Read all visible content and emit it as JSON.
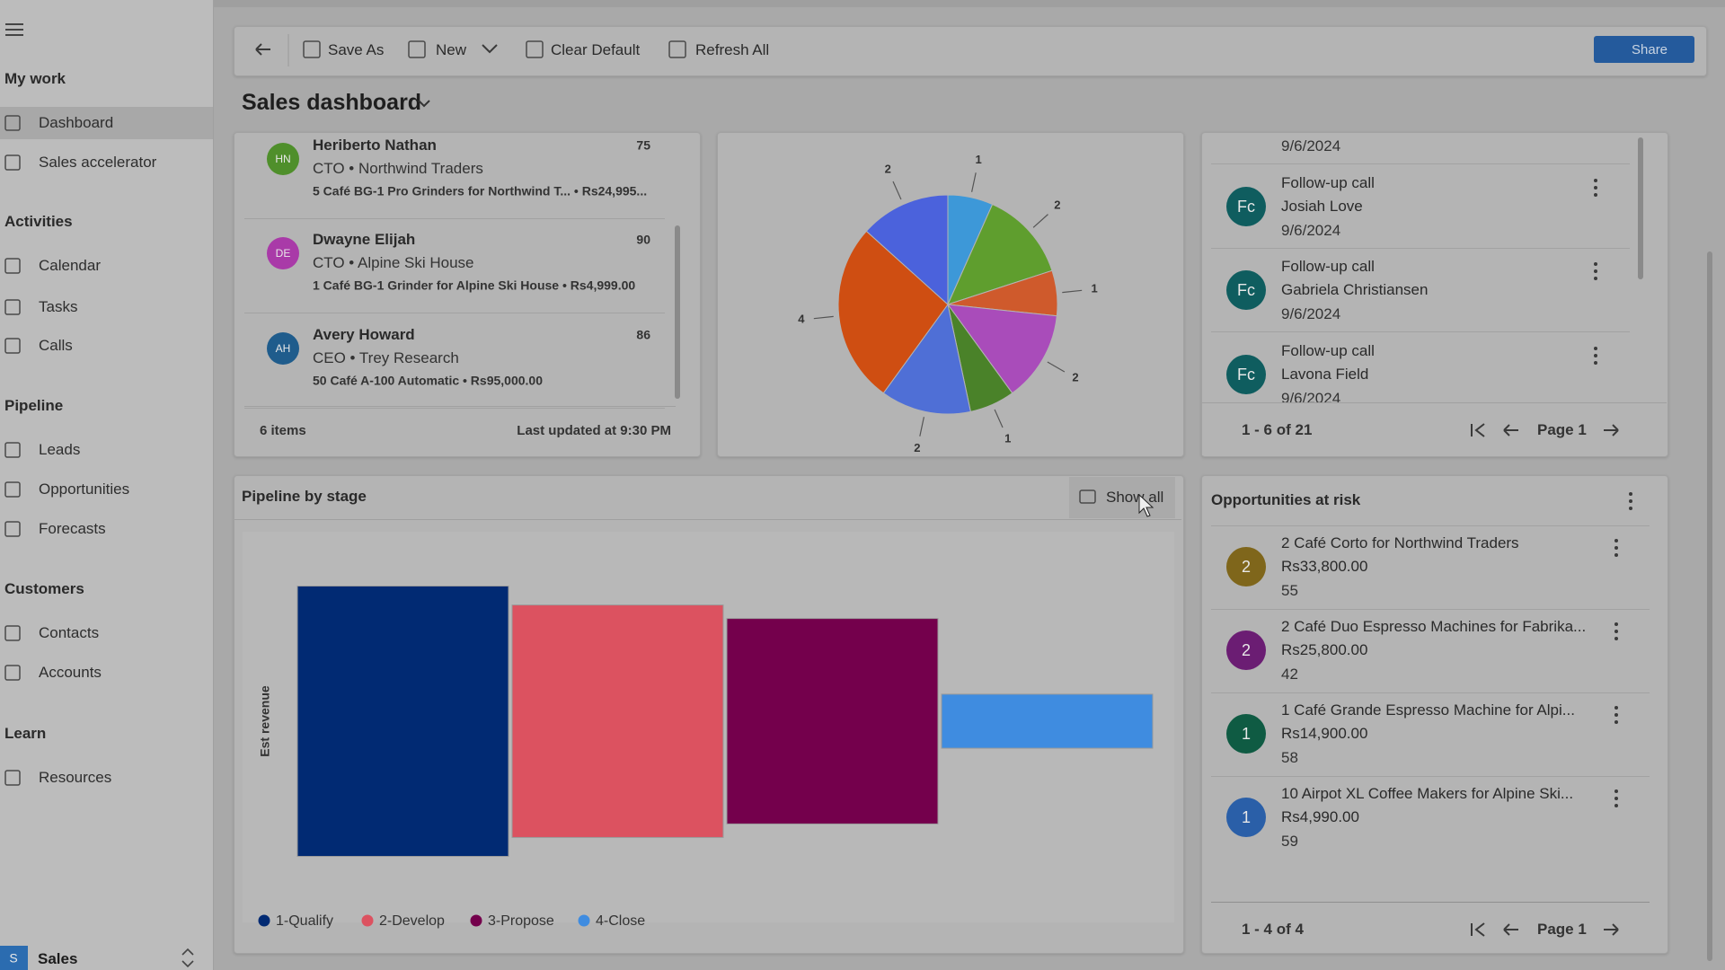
{
  "sidebar": {
    "sections": [
      {
        "title": "My work",
        "items": [
          "Dashboard",
          "Sales accelerator"
        ]
      },
      {
        "title": "Activities",
        "items": [
          "Calendar",
          "Tasks",
          "Calls"
        ]
      },
      {
        "title": "Pipeline",
        "items": [
          "Leads",
          "Opportunities",
          "Forecasts"
        ]
      },
      {
        "title": "Customers",
        "items": [
          "Contacts",
          "Accounts"
        ]
      },
      {
        "title": "Learn",
        "items": [
          "Resources"
        ]
      }
    ],
    "app_badge": "S",
    "app": "Sales"
  },
  "toolbar": {
    "buttons": [
      "Save As",
      "New",
      "Clear Default",
      "Refresh All"
    ],
    "share": "Share"
  },
  "header": {
    "title": "Sales dashboard"
  },
  "leads": {
    "items": [
      {
        "initials": "HN",
        "name": "Heriberto Nathan",
        "role": "CTO • Northwind Traders",
        "detail": "5 Café BG-1 Pro Grinders for Northwind T... • Rs24,995...",
        "score": 75
      },
      {
        "initials": "DE",
        "name": "Dwayne Elijah",
        "role": "CTO • Alpine Ski House",
        "detail": "1 Café BG-1 Grinder for Alpine Ski House • Rs4,999.00",
        "score": 90
      },
      {
        "initials": "AH",
        "name": "Avery Howard",
        "role": "CEO • Trey Research",
        "detail": "50 Café A-100 Automatic • Rs95,000.00",
        "score": 86
      }
    ],
    "count": "6 items",
    "updated": "Last updated at 9:30 PM"
  },
  "activities": {
    "partial_date": "9/6/2024",
    "items": [
      {
        "initials": "Fc",
        "subject": "Follow-up call",
        "contact": "Josiah Love",
        "date": "9/6/2024"
      },
      {
        "initials": "Fc",
        "subject": "Follow-up call",
        "contact": "Gabriela Christiansen",
        "date": "9/6/2024"
      },
      {
        "initials": "Fc",
        "subject": "Follow-up call",
        "contact": "Lavona Field",
        "date": "9/6/2024"
      }
    ],
    "range": "1 - 6 of 21",
    "page": "Page 1"
  },
  "pipeline": {
    "title": "Pipeline by stage",
    "show_all": "Show all"
  },
  "opportunities": {
    "title": "Opportunities at risk",
    "items": [
      {
        "badge": "2",
        "name": "2 Café Corto for Northwind Traders",
        "amount": "Rs33,800.00",
        "score": 55
      },
      {
        "badge": "2",
        "name": "2 Café Duo Espresso Machines for Fabrika...",
        "amount": "Rs25,800.00",
        "score": 42
      },
      {
        "badge": "1",
        "name": "1 Café Grande Espresso Machine for Alpi...",
        "amount": "Rs14,900.00",
        "score": 58
      },
      {
        "badge": "1",
        "name": "10 Airpot XL Coffee Makers for Alpine Ski...",
        "amount": "Rs4,990.00",
        "score": 59
      }
    ],
    "range": "1 - 4 of 4",
    "page": "Page 1"
  },
  "chart_data": [
    {
      "type": "pie",
      "values": [
        1,
        2,
        1,
        2,
        1,
        2,
        4,
        2
      ],
      "colors": [
        "#3d98d8",
        "#5f9e2e",
        "#cf5a2c",
        "#a94cba",
        "#4a8229",
        "#4f6fd6",
        "#cf4e12",
        "#4b62dc"
      ]
    },
    {
      "type": "funnel",
      "y_label": "Est revenue",
      "categories": [
        "1-Qualify",
        "2-Develop",
        "3-Propose",
        "4-Close"
      ],
      "values": [
        100,
        86,
        76,
        20
      ],
      "colors": [
        "#012a73",
        "#dc5260",
        "#74004c",
        "#3f8ce0"
      ]
    }
  ]
}
